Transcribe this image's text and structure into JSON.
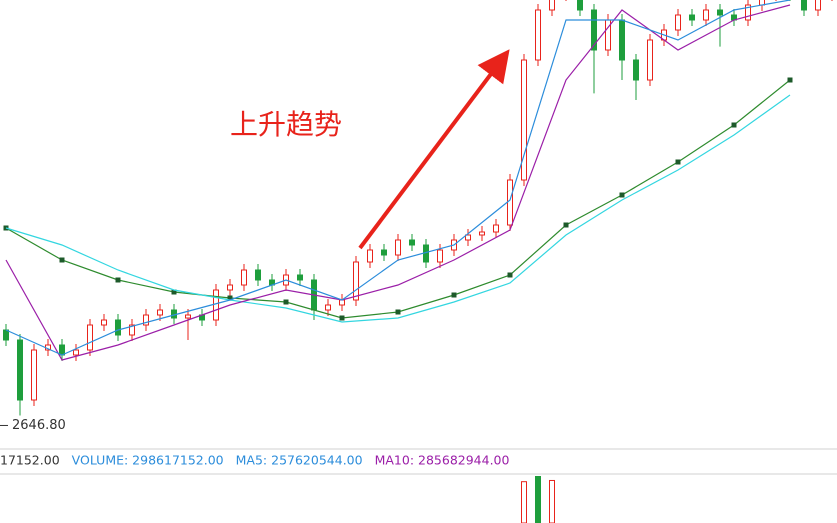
{
  "chart_data": [
    {
      "type": "candlestick",
      "annotation": "上升趋势",
      "up_color": "#e8231b",
      "down_color": "#1e9e3c",
      "ylim": [
        2610,
        3270
      ],
      "min_label": {
        "value": 2646.8,
        "label": "2646.80"
      },
      "candles": {
        "open": [
          2775,
          2760,
          2670,
          2745,
          2752.5,
          2737.5,
          2745,
          2782.5,
          2790,
          2767.5,
          2782.5,
          2797.5,
          2805,
          2793,
          2797.5,
          2790,
          2835,
          2842.5,
          2865,
          2850,
          2842.5,
          2857.5,
          2850,
          2805,
          2812.5,
          2820,
          2877,
          2895,
          2887.5,
          2910,
          2902.5,
          2877,
          2895,
          2910,
          2917.5,
          2922,
          2932.5,
          3000,
          3180,
          3255,
          3277.5,
          3285,
          3255,
          3195,
          3240,
          3180,
          3150,
          3210,
          3225,
          3247.5,
          3240,
          3255,
          3247.5,
          3240,
          3262.5,
          3277.5,
          3285,
          3277.5,
          3255,
          3277.5
        ],
        "high": [
          2784,
          2769,
          2754,
          2761.5,
          2761.5,
          2754,
          2791.5,
          2799,
          2799,
          2791.5,
          2806.5,
          2814,
          2814,
          2806.5,
          2806.5,
          2844,
          2851.5,
          2874,
          2874,
          2859,
          2866.5,
          2866.5,
          2859,
          2821.5,
          2829,
          2886,
          2904,
          2904,
          2919,
          2919,
          2911.5,
          2904,
          2919,
          2926.5,
          2931,
          2941.5,
          3009,
          3189,
          3264,
          3286.5,
          3294,
          3294,
          3264,
          3249,
          3249,
          3189,
          3219,
          3234,
          3256.5,
          3256.5,
          3264,
          3264,
          3256.5,
          3271.5,
          3286.5,
          3294,
          3294,
          3286.5,
          3286.5,
          3294
        ],
        "low": [
          2751,
          2646.8,
          2661,
          2736,
          2728.5,
          2728.5,
          2736,
          2773.5,
          2758.5,
          2758.5,
          2773.5,
          2788.5,
          2784,
          2760,
          2781,
          2781,
          2826,
          2833.5,
          2841,
          2833.5,
          2833.5,
          2841,
          2790,
          2796,
          2803.5,
          2811,
          2868,
          2878.5,
          2878.5,
          2893.5,
          2868,
          2868,
          2886,
          2901,
          2908.5,
          2913,
          2923.5,
          2991,
          3171,
          3246,
          3268.5,
          3246,
          3130,
          3186,
          3150,
          3120,
          3141,
          3201,
          3216,
          3231,
          3231,
          3200,
          3231,
          3231,
          3253.5,
          3268.5,
          3268.5,
          3246,
          3246,
          3268.5
        ],
        "close": [
          2760,
          2670,
          2745,
          2752.5,
          2737.5,
          2745,
          2782.5,
          2790,
          2767.5,
          2782.5,
          2797.5,
          2805,
          2793,
          2797.5,
          2790,
          2835,
          2842.5,
          2865,
          2850,
          2842.5,
          2857.5,
          2850,
          2805,
          2812.5,
          2820,
          2877,
          2895,
          2887.5,
          2910,
          2902.5,
          2877,
          2895,
          2910,
          2917.5,
          2922,
          2932.5,
          3000,
          3180,
          3255,
          3277.5,
          3285,
          3255,
          3195,
          3240,
          3180,
          3150,
          3210,
          3225,
          3247.5,
          3240,
          3255,
          3247.5,
          3240,
          3262.5,
          3277.5,
          3285,
          3277.5,
          3255,
          3277.5,
          3285
        ]
      },
      "ma_x": [
        0,
        4,
        8,
        12,
        16,
        20,
        24,
        28,
        32,
        36,
        40,
        44,
        48,
        52,
        56
      ],
      "series": [
        {
          "color": "#2e8b2e",
          "markers": true,
          "values": [
            2928,
            2880,
            2850,
            2832,
            2823,
            2817,
            2793,
            2802,
            2827.5,
            2857.5,
            2932.5,
            2977.5,
            3027,
            3082.5,
            3150
          ]
        },
        {
          "color": "#33d6e0",
          "values": [
            2928,
            2902.5,
            2865,
            2835,
            2820,
            2808,
            2787,
            2793,
            2817,
            2845.5,
            2917.5,
            2970,
            3015,
            3067.5,
            3127.5
          ]
        },
        {
          "color": "#9b1fa8",
          "values": [
            2880,
            2730,
            2752.5,
            2782.5,
            2812.5,
            2835,
            2820,
            2842.5,
            2880,
            2925,
            3150,
            3255,
            3195,
            3240,
            3262.5
          ]
        },
        {
          "color": "#2c8ddb",
          "values": [
            2775,
            2737.5,
            2775,
            2797.5,
            2820,
            2850,
            2820,
            2880,
            2902.5,
            2970,
            3240,
            3240,
            3210,
            3255,
            3270
          ]
        }
      ]
    },
    {
      "type": "bar",
      "legend": [
        {
          "label": "17152.00",
          "color": "#333333"
        },
        {
          "label": "VOLUME: 298617152.00",
          "color": "#2c8ddb"
        },
        {
          "label": "MA5: 257620544.00",
          "color": "#2c8ddb"
        },
        {
          "label": "MA10: 285682944.00",
          "color": "#9b1fa8"
        }
      ],
      "x": [
        37,
        38,
        39
      ],
      "values": [
        290000000,
        330000000,
        298617152
      ],
      "colors": [
        "#e8231b",
        "#1e9e3c",
        "#e8231b"
      ],
      "ylim": [
        0,
        330000000
      ]
    }
  ]
}
